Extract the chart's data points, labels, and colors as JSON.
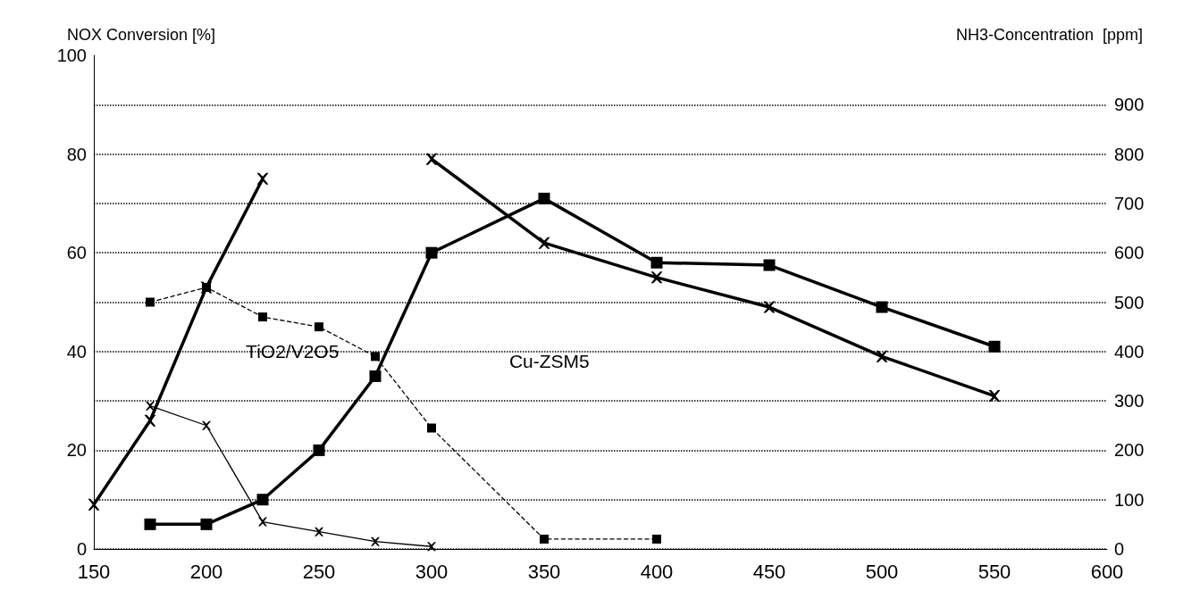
{
  "chart_data": {
    "type": "line",
    "ylabel": "NOX Conversion [%]",
    "y2label": "NH3-Concentration  [ppm]",
    "x": [
      150,
      175,
      200,
      225,
      250,
      275,
      300,
      350,
      400,
      450,
      500,
      550
    ],
    "xlim": [
      150,
      600
    ],
    "xticks": [
      150,
      200,
      250,
      300,
      350,
      400,
      450,
      500,
      550,
      600
    ],
    "ylim": [
      0,
      100
    ],
    "yticks": [
      0,
      20,
      40,
      60,
      80,
      100
    ],
    "y2lim": [
      0,
      1000
    ],
    "y2ticks": [
      0,
      100,
      200,
      300,
      400,
      500,
      600,
      700,
      800,
      900
    ],
    "grid": "y",
    "series": [
      {
        "color": "#000000",
        "marker": "cross",
        "line_style": "solid",
        "values": [
          9,
          26,
          53,
          75,
          null,
          null,
          79,
          62,
          55,
          49,
          39,
          31
        ]
      },
      {
        "color": "#000000",
        "marker": "square",
        "line_style": "solid",
        "values": [
          null,
          5,
          5,
          10,
          20,
          35,
          60,
          71,
          58,
          57.5,
          49,
          41
        ]
      },
      {
        "color": "#000000",
        "marker": "cross",
        "line_style": "solid",
        "axis": "y2",
        "values": [
          null,
          290,
          250,
          55,
          35,
          15,
          5,
          null,
          null,
          null,
          null,
          null
        ]
      },
      {
        "color": "#000000",
        "marker": "square",
        "line_style": "dashed",
        "axis": "y2",
        "values": [
          null,
          500,
          530,
          470,
          450,
          390,
          245,
          20,
          20,
          null,
          null,
          null
        ]
      }
    ],
    "annotations": [
      "TiO2/V2O5",
      "Cu-ZSM5"
    ]
  }
}
